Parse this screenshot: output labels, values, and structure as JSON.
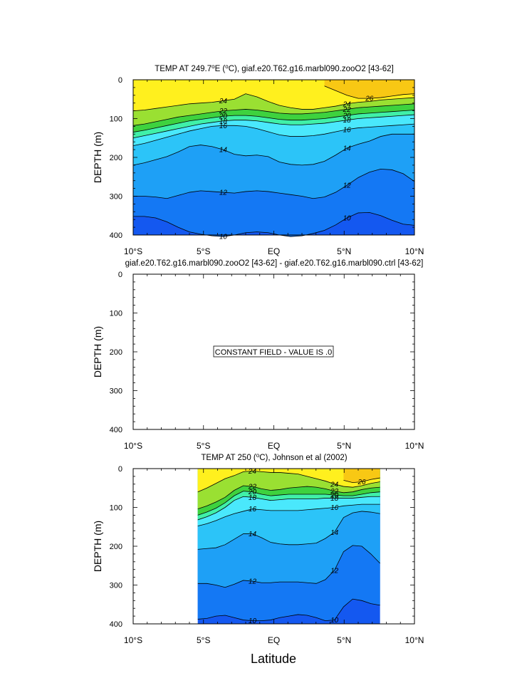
{
  "figure": {
    "xlabel": "Latitude",
    "colors": {
      "levels": [
        "#1458f0",
        "#1478f4",
        "#1ea0f6",
        "#2cc4f8",
        "#4ae8fc",
        "#40f0a8",
        "#3ed23e",
        "#9ae032",
        "#fff01e",
        "#f8c814",
        "#f8a00e",
        "#f07a0a",
        "#f85012",
        "#f02c14"
      ]
    }
  },
  "chart_data": [
    {
      "type": "contour",
      "title_prefix": "TEMP AT 249.7",
      "title_sup1": "o",
      "title_mid": "E (",
      "title_sup2": "o",
      "title_suffix": "C), giaf.e20.T62.g16.marbl090.zooO2 [43-62]",
      "ylabel": "DEPTH (m)",
      "xlim": [
        -10,
        10
      ],
      "ylim": [
        400,
        0
      ],
      "xticks": [
        "10°S",
        "5°S",
        "EQ",
        "5°N",
        "10°N"
      ],
      "yticks": [
        "0",
        "100",
        "200",
        "300",
        "400"
      ],
      "data_extent": [
        -10,
        10
      ],
      "isotherms": [
        {
          "label": "10",
          "depths": [
            352,
            352,
            356,
            366,
            380,
            392,
            398,
            402,
            404,
            400,
            394,
            392,
            394,
            400,
            404,
            402,
            396,
            388,
            374,
            356,
            343,
            342,
            350,
            362,
            372,
            375
          ]
        },
        {
          "label": "12",
          "depths": [
            300,
            300,
            302,
            306,
            298,
            290,
            286,
            288,
            290,
            292,
            288,
            286,
            288,
            292,
            296,
            300,
            306,
            302,
            290,
            272,
            252,
            238,
            230,
            232,
            242,
            262
          ]
        },
        {
          "label": "14",
          "depths": [
            220,
            214,
            206,
            198,
            186,
            172,
            168,
            172,
            180,
            192,
            196,
            194,
            198,
            212,
            218,
            220,
            218,
            210,
            194,
            176,
            166,
            158,
            146,
            140,
            140,
            140
          ]
        },
        {
          "label": "16",
          "depths": [
            170,
            164,
            156,
            148,
            140,
            132,
            126,
            120,
            118,
            118,
            120,
            126,
            134,
            142,
            146,
            146,
            144,
            140,
            134,
            128,
            124,
            122,
            120,
            118,
            116,
            114
          ]
        },
        {
          "label": "18",
          "depths": [
            150,
            144,
            138,
            132,
            126,
            120,
            114,
            110,
            106,
            104,
            104,
            106,
            110,
            114,
            116,
            116,
            114,
            112,
            108,
            104,
            100,
            98,
            96,
            94,
            92,
            90
          ]
        },
        {
          "label": "20",
          "depths": [
            135,
            130,
            124,
            118,
            112,
            106,
            102,
            98,
            94,
            92,
            92,
            94,
            98,
            102,
            104,
            104,
            102,
            100,
            96,
            92,
            88,
            86,
            84,
            82,
            80,
            78
          ]
        },
        {
          "label": "22",
          "depths": [
            118,
            114,
            108,
            102,
            96,
            92,
            88,
            84,
            80,
            78,
            76,
            78,
            82,
            86,
            88,
            88,
            86,
            84,
            80,
            76,
            72,
            70,
            68,
            66,
            64,
            62
          ]
        },
        {
          "label": "24",
          "depths": [
            80,
            78,
            74,
            70,
            66,
            62,
            60,
            58,
            54,
            50,
            36,
            44,
            56,
            66,
            72,
            76,
            76,
            72,
            68,
            62,
            58,
            56,
            52,
            50,
            48,
            46
          ]
        },
        {
          "label": "26",
          "depths": [
            null,
            null,
            null,
            null,
            null,
            null,
            null,
            null,
            null,
            null,
            null,
            null,
            null,
            null,
            null,
            null,
            null,
            16,
            28,
            40,
            48,
            48,
            46,
            42,
            38,
            36
          ]
        }
      ]
    },
    {
      "type": "contour",
      "title": "giaf.e20.T62.g16.marbl090.zooO2 [43-62] - giaf.e20.T62.g16.marbl090.ctrl [43-62]",
      "ylabel": "DEPTH (m)",
      "xlim": [
        -10,
        10
      ],
      "ylim": [
        400,
        0
      ],
      "xticks": [
        "10°S",
        "5°S",
        "EQ",
        "5°N",
        "10°N"
      ],
      "yticks": [
        "0",
        "100",
        "200",
        "300",
        "400"
      ],
      "annotation": "CONSTANT FIELD - VALUE IS .0",
      "isotherms": []
    },
    {
      "type": "contour",
      "title_prefix": "TEMP AT 250 (",
      "title_sup1": "o",
      "title_suffix": "C), Johnson et al (2002)",
      "ylabel": "DEPTH (m)",
      "xlim": [
        -10,
        10
      ],
      "ylim": [
        400,
        0
      ],
      "xticks": [
        "10°S",
        "5°S",
        "EQ",
        "5°N",
        "10°N"
      ],
      "yticks": [
        "0",
        "100",
        "200",
        "300",
        "400"
      ],
      "data_extent": [
        -8,
        8.2
      ],
      "isotherms": [
        {
          "label": "10",
          "depths": [
            null,
            null,
            null,
            null,
            388,
            386,
            380,
            378,
            384,
            390,
            392,
            392,
            390,
            384,
            380,
            376,
            378,
            384,
            392,
            390,
            356,
            336,
            340,
            348,
            352,
            null
          ]
        },
        {
          "label": "12",
          "depths": [
            null,
            null,
            null,
            null,
            296,
            296,
            300,
            306,
            298,
            288,
            290,
            294,
            294,
            292,
            292,
            292,
            294,
            296,
            286,
            262,
            214,
            198,
            200,
            220,
            244,
            null
          ]
        },
        {
          "label": "14",
          "depths": [
            null,
            null,
            null,
            null,
            208,
            206,
            204,
            196,
            182,
            168,
            168,
            178,
            190,
            194,
            196,
            196,
            194,
            192,
            180,
            164,
            126,
            114,
            110,
            112,
            116,
            null
          ]
        },
        {
          "label": "16",
          "depths": [
            null,
            null,
            null,
            null,
            148,
            142,
            134,
            124,
            116,
            110,
            104,
            106,
            108,
            108,
            108,
            108,
            106,
            104,
            102,
            100,
            96,
            94,
            92,
            92,
            92,
            null
          ]
        },
        {
          "label": "18",
          "depths": [
            null,
            null,
            null,
            null,
            132,
            124,
            114,
            100,
            82,
            72,
            74,
            78,
            82,
            80,
            78,
            78,
            78,
            78,
            76,
            76,
            76,
            76,
            74,
            72,
            72,
            null
          ]
        },
        {
          "label": "20",
          "depths": [
            null,
            null,
            null,
            null,
            120,
            112,
            102,
            88,
            70,
            58,
            60,
            66,
            70,
            68,
            66,
            66,
            66,
            66,
            66,
            68,
            70,
            70,
            66,
            62,
            60,
            null
          ]
        },
        {
          "label": "22",
          "depths": [
            null,
            null,
            null,
            null,
            104,
            96,
            86,
            74,
            56,
            44,
            46,
            52,
            56,
            54,
            50,
            48,
            46,
            48,
            52,
            58,
            62,
            60,
            54,
            50,
            48,
            null
          ]
        },
        {
          "label": "24",
          "depths": [
            null,
            null,
            null,
            null,
            60,
            50,
            38,
            26,
            18,
            8,
            6,
            8,
            10,
            10,
            12,
            14,
            20,
            26,
            32,
            40,
            46,
            48,
            44,
            38,
            34,
            null
          ]
        },
        {
          "label": "26",
          "depths": [
            null,
            null,
            null,
            null,
            null,
            null,
            null,
            null,
            null,
            null,
            null,
            null,
            null,
            null,
            null,
            null,
            null,
            null,
            null,
            null,
            30,
            36,
            34,
            28,
            24,
            null
          ]
        }
      ]
    }
  ]
}
